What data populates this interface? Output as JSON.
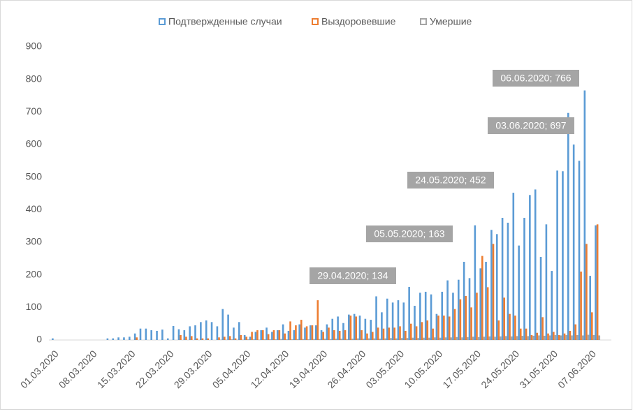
{
  "chart_data": {
    "type": "bar",
    "categories": [
      "01.03.2020",
      null,
      null,
      null,
      null,
      null,
      null,
      "08.03.2020",
      null,
      null,
      null,
      null,
      null,
      null,
      "15.03.2020",
      null,
      null,
      null,
      null,
      null,
      null,
      "22.03.2020",
      null,
      null,
      null,
      null,
      null,
      null,
      "29.03.2020",
      null,
      null,
      null,
      null,
      null,
      null,
      "05.04.2020",
      null,
      null,
      null,
      null,
      null,
      null,
      "12.04.2020",
      null,
      null,
      null,
      null,
      null,
      null,
      "19.04.2020",
      null,
      null,
      null,
      null,
      null,
      null,
      "26.04.2020",
      null,
      null,
      null,
      null,
      null,
      null,
      "03.05.2020",
      null,
      null,
      null,
      null,
      null,
      null,
      "10.05.2020",
      null,
      null,
      null,
      null,
      null,
      null,
      "17.05.2020",
      null,
      null,
      null,
      null,
      null,
      null,
      "24.05.2020",
      null,
      null,
      null,
      null,
      null,
      null,
      "31.05.2020",
      null,
      null,
      null,
      null,
      null,
      null,
      "07.06.2020",
      null
    ],
    "series": [
      {
        "name": "Подтвержденные случаи",
        "color": "#5b9bd5",
        "values": [
          5,
          0,
          0,
          0,
          0,
          0,
          0,
          0,
          0,
          0,
          5,
          5,
          8,
          8,
          10,
          20,
          35,
          35,
          30,
          28,
          32,
          5,
          43,
          33,
          30,
          42,
          45,
          55,
          60,
          55,
          42,
          95,
          78,
          38,
          55,
          15,
          10,
          25,
          30,
          38,
          25,
          30,
          48,
          28,
          30,
          48,
          38,
          45,
          45,
          30,
          48,
          65,
          72,
          52,
          78,
          80,
          75,
          65,
          62,
          134,
          85,
          127,
          115,
          122,
          115,
          163,
          105,
          145,
          148,
          140,
          80,
          148,
          183,
          145,
          185,
          240,
          190,
          352,
          220,
          240,
          338,
          325,
          375,
          360,
          452,
          290,
          375,
          445,
          462,
          255,
          355,
          212,
          520,
          518,
          697,
          600,
          550,
          766,
          197,
          352
        ]
      },
      {
        "name": "Выздоровевшие",
        "color": "#ed7d31",
        "values": [
          0,
          0,
          0,
          0,
          0,
          0,
          0,
          0,
          0,
          0,
          0,
          0,
          0,
          0,
          0,
          8,
          0,
          0,
          0,
          0,
          0,
          0,
          0,
          15,
          10,
          12,
          5,
          5,
          5,
          0,
          8,
          10,
          12,
          5,
          15,
          10,
          25,
          30,
          30,
          18,
          30,
          30,
          20,
          57,
          45,
          62,
          42,
          45,
          122,
          25,
          38,
          30,
          28,
          30,
          75,
          72,
          30,
          20,
          25,
          38,
          35,
          38,
          38,
          42,
          28,
          50,
          42,
          55,
          60,
          35,
          75,
          75,
          72,
          95,
          125,
          135,
          100,
          145,
          258,
          162,
          295,
          60,
          130,
          80,
          75,
          35,
          35,
          15,
          22,
          70,
          20,
          25,
          15,
          20,
          28,
          48,
          210,
          295,
          85,
          355
        ]
      },
      {
        "name": "Умершие",
        "color": "#a5a5a5",
        "values": [
          0,
          0,
          0,
          0,
          0,
          0,
          0,
          0,
          0,
          0,
          0,
          0,
          0,
          0,
          0,
          0,
          0,
          0,
          0,
          0,
          0,
          0,
          0,
          0,
          0,
          0,
          0,
          0,
          0,
          0,
          1,
          1,
          2,
          1,
          1,
          2,
          2,
          1,
          2,
          2,
          2,
          3,
          2,
          2,
          3,
          3,
          2,
          3,
          3,
          4,
          3,
          4,
          4,
          3,
          4,
          5,
          4,
          5,
          5,
          4,
          5,
          6,
          5,
          6,
          6,
          7,
          6,
          7,
          7,
          8,
          7,
          8,
          8,
          9,
          8,
          9,
          10,
          9,
          10,
          11,
          10,
          11,
          12,
          11,
          12,
          13,
          12,
          13,
          14,
          13,
          14,
          15,
          14,
          15,
          14,
          15,
          14,
          16,
          15,
          14
        ]
      }
    ],
    "annotations": [
      "06.06.2020; 766",
      "03.06.2020; 697",
      "24.05.2020; 452",
      "05.05.2020; 163",
      "29.04.2020; 134"
    ],
    "ylim": [
      0,
      900
    ],
    "yticks": [
      0,
      100,
      200,
      300,
      400,
      500,
      600,
      700,
      800,
      900
    ],
    "grid": false,
    "legend": "top"
  }
}
